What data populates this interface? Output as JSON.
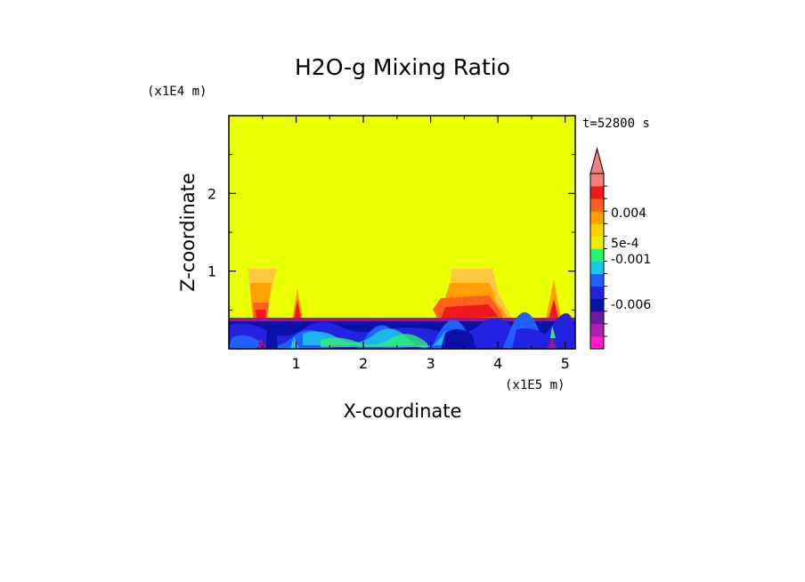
{
  "chart_data": {
    "type": "heatmap",
    "title": "H2O-g Mixing Ratio",
    "xlabel": "X-coordinate",
    "ylabel": "Z-coordinate",
    "x_scale_label": "(x1E5 m)",
    "y_scale_label": "(x1E4 m)",
    "time_label": "t=52800 s",
    "xlim": [
      0,
      5.15
    ],
    "ylim": [
      0,
      3.0
    ],
    "x_ticks": [
      "1",
      "2",
      "3",
      "4",
      "5"
    ],
    "y_ticks": [
      "1",
      "2"
    ],
    "background_level": "yellow (near 0)",
    "layer_top_z": 0.4,
    "features": [
      {
        "name": "plume-1",
        "x_center": 0.5,
        "z_top": 1.05
      },
      {
        "name": "spike-1",
        "x_center": 1.0,
        "z_top": 0.8
      },
      {
        "name": "plume-2",
        "x_center": 3.5,
        "z_top": 1.05
      },
      {
        "name": "spike-2",
        "x_center": 4.85,
        "z_top": 0.9
      }
    ],
    "colorbar": {
      "labels": [
        "0.004",
        "5e-4",
        "-0.001",
        "-0.006"
      ],
      "colors": [
        "#ff1ec8",
        "#aa22aa",
        "#6a1aa0",
        "#0a10a8",
        "#2222e0",
        "#2060ff",
        "#18c8e8",
        "#30f070",
        "#eaf000",
        "#ffd000",
        "#ffa000",
        "#ff6020",
        "#f01818",
        "#f08080"
      ]
    }
  }
}
